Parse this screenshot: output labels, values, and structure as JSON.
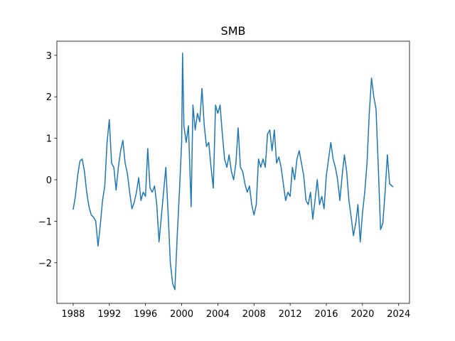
{
  "chart_data": {
    "type": "line",
    "title": "SMB",
    "x": [
      1988.0,
      1988.25,
      1988.5,
      1988.75,
      1989.0,
      1989.25,
      1989.5,
      1989.75,
      1990.0,
      1990.25,
      1990.5,
      1990.75,
      1991.0,
      1991.25,
      1991.5,
      1991.75,
      1992.0,
      1992.25,
      1992.5,
      1992.75,
      1993.0,
      1993.25,
      1993.5,
      1993.75,
      1994.0,
      1994.25,
      1994.5,
      1994.75,
      1995.0,
      1995.25,
      1995.5,
      1995.75,
      1996.0,
      1996.25,
      1996.5,
      1996.75,
      1997.0,
      1997.25,
      1997.5,
      1997.75,
      1998.0,
      1998.25,
      1998.5,
      1998.75,
      1999.0,
      1999.25,
      1999.5,
      1999.75,
      2000.0,
      2000.1,
      2000.25,
      2000.5,
      2000.75,
      2001.05,
      2001.25,
      2001.5,
      2001.75,
      2002.0,
      2002.25,
      2002.5,
      2002.75,
      2003.0,
      2003.25,
      2003.5,
      2003.75,
      2004.0,
      2004.25,
      2004.5,
      2004.75,
      2005.0,
      2005.25,
      2005.5,
      2005.75,
      2006.0,
      2006.25,
      2006.5,
      2006.75,
      2007.0,
      2007.25,
      2007.5,
      2007.75,
      2008.0,
      2008.25,
      2008.5,
      2008.75,
      2009.0,
      2009.25,
      2009.5,
      2009.75,
      2010.0,
      2010.25,
      2010.5,
      2010.75,
      2011.0,
      2011.25,
      2011.5,
      2011.75,
      2012.0,
      2012.25,
      2012.5,
      2012.75,
      2013.0,
      2013.25,
      2013.5,
      2013.75,
      2014.0,
      2014.25,
      2014.5,
      2014.75,
      2015.0,
      2015.25,
      2015.5,
      2015.75,
      2016.0,
      2016.25,
      2016.5,
      2016.75,
      2017.0,
      2017.25,
      2017.5,
      2017.75,
      2018.0,
      2018.25,
      2018.5,
      2018.75,
      2019.0,
      2019.25,
      2019.5,
      2019.75,
      2020.0,
      2020.25,
      2020.5,
      2020.75,
      2021.0,
      2021.25,
      2021.5,
      2021.75,
      2022.0,
      2022.25,
      2022.5,
      2022.75,
      2023.0,
      2023.25,
      2023.4
    ],
    "series": [
      {
        "name": "SMB",
        "color": "#1f77b4",
        "values": [
          -0.72,
          -0.4,
          0.1,
          0.45,
          0.5,
          0.2,
          -0.3,
          -0.65,
          -0.85,
          -0.9,
          -1.0,
          -1.6,
          -1.1,
          -0.5,
          -0.15,
          0.9,
          1.45,
          0.4,
          0.3,
          -0.25,
          0.3,
          0.7,
          0.95,
          0.4,
          0.15,
          -0.3,
          -0.7,
          -0.55,
          -0.3,
          0.05,
          -0.5,
          -0.3,
          -0.4,
          0.75,
          -0.2,
          -0.3,
          -0.15,
          -0.6,
          -1.5,
          -0.9,
          -0.3,
          0.3,
          -0.8,
          -2.0,
          -2.5,
          -2.65,
          -1.4,
          -0.3,
          0.9,
          3.05,
          1.3,
          0.9,
          1.3,
          -0.65,
          1.8,
          1.2,
          1.6,
          1.4,
          2.2,
          1.3,
          0.8,
          0.9,
          0.3,
          -0.2,
          1.8,
          1.6,
          1.8,
          1.1,
          0.5,
          0.3,
          0.6,
          0.2,
          0.0,
          0.4,
          1.25,
          0.3,
          0.2,
          -0.1,
          -0.3,
          -0.15,
          -0.6,
          -0.85,
          -0.6,
          0.5,
          0.3,
          0.5,
          0.3,
          1.1,
          1.2,
          0.7,
          1.2,
          0.4,
          0.55,
          0.3,
          -0.1,
          -0.5,
          -0.3,
          -0.4,
          0.3,
          0.0,
          0.5,
          0.7,
          0.4,
          0.1,
          -0.5,
          -0.6,
          -0.3,
          -0.95,
          -0.5,
          0.0,
          -0.6,
          -0.4,
          -0.7,
          0.1,
          0.5,
          0.9,
          0.5,
          0.3,
          0.0,
          -0.5,
          0.1,
          0.6,
          0.2,
          -0.5,
          -0.9,
          -1.35,
          -1.05,
          -0.6,
          -1.5,
          -0.8,
          -0.3,
          0.4,
          1.6,
          2.45,
          2.0,
          1.7,
          0.3,
          -1.2,
          -1.05,
          -0.3,
          0.6,
          -0.1,
          -0.15,
          -0.17
        ]
      }
    ],
    "xlim": [
      1986.2,
      2025.2
    ],
    "xticks": [
      1988,
      1992,
      1996,
      2000,
      2004,
      2008,
      2012,
      2016,
      2020,
      2024
    ],
    "ylim": [
      -2.98,
      3.34
    ],
    "yticks": [
      {
        "value": -2,
        "label": "−2"
      },
      {
        "value": -1,
        "label": "−1"
      },
      0,
      1,
      2,
      3
    ]
  }
}
